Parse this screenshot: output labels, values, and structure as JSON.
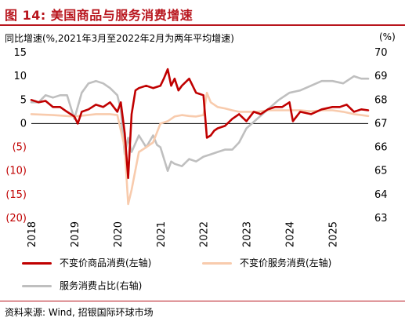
{
  "title": "图 14: 美国商品与服务消费增速",
  "subtitle": "同比增速(%,2021年3月至2022年2月为两年平均增速)",
  "right_unit": "(%)",
  "source": "资料来源: Wind, 招银国际环球市场",
  "colors": {
    "title": "#b8151d",
    "goods": "#c00000",
    "services": "#f8cbad",
    "share": "#bfbfbf",
    "negative_tick": "#c00000"
  },
  "chart_data": {
    "type": "line",
    "x_ticks": [
      "2018",
      "2019",
      "2020",
      "2021",
      "2022",
      "2023",
      "2024",
      "2025"
    ],
    "y_left": {
      "ticks": [
        "15",
        "10",
        "5",
        "0",
        "(5)",
        "(10)",
        "(15)",
        "(20)"
      ],
      "ylim": [
        -20,
        15
      ]
    },
    "y_right": {
      "ticks": [
        "70",
        "69",
        "68",
        "67",
        "66",
        "65",
        "64",
        "63"
      ],
      "ylim": [
        63,
        70
      ]
    },
    "xlim": [
      2018.0,
      2025.83
    ],
    "series": [
      {
        "name": "不变价商品消费(左轴)",
        "axis": "left",
        "x": [
          2018.0,
          2018.17,
          2018.33,
          2018.5,
          2018.67,
          2018.83,
          2019.0,
          2019.08,
          2019.17,
          2019.33,
          2019.5,
          2019.67,
          2019.83,
          2020.0,
          2020.08,
          2020.17,
          2020.25,
          2020.33,
          2020.42,
          2020.5,
          2020.67,
          2020.83,
          2021.0,
          2021.08,
          2021.17,
          2021.25,
          2021.33,
          2021.42,
          2021.5,
          2021.67,
          2021.83,
          2022.0,
          2022.08,
          2022.17,
          2022.25,
          2022.33,
          2022.5,
          2022.67,
          2022.83,
          2023.0,
          2023.17,
          2023.33,
          2023.5,
          2023.67,
          2023.83,
          2024.0,
          2024.08,
          2024.25,
          2024.5,
          2024.75,
          2025.0,
          2025.17,
          2025.33,
          2025.5,
          2025.67,
          2025.83
        ],
        "y": [
          5,
          4.5,
          4.8,
          3.5,
          3.5,
          2.5,
          1.5,
          0,
          2.5,
          3,
          4,
          3.5,
          4.5,
          2.5,
          4.5,
          -2,
          -11.5,
          2,
          7,
          7.5,
          8,
          7.5,
          8,
          9.5,
          11.5,
          8,
          9.5,
          7,
          8,
          9.5,
          6.5,
          6,
          -3,
          -2.5,
          -1.5,
          -1,
          -0.5,
          1,
          2,
          0.5,
          2.5,
          2,
          3,
          3.5,
          3.5,
          4.5,
          0.5,
          2.5,
          2,
          3,
          3.5,
          3.5,
          4,
          2.5,
          3,
          2.8
        ]
      },
      {
        "name": "不变价服务消费(左轴)",
        "axis": "left",
        "x": [
          2018.0,
          2018.5,
          2019.0,
          2019.5,
          2019.83,
          2020.0,
          2020.17,
          2020.25,
          2020.33,
          2020.5,
          2020.67,
          2020.83,
          2021.0,
          2021.17,
          2021.33,
          2021.5,
          2021.67,
          2021.83,
          2022.0,
          2022.08,
          2022.17,
          2022.33,
          2022.5,
          2022.67,
          2022.83,
          2023.0,
          2023.25,
          2023.5,
          2023.75,
          2024.0,
          2024.25,
          2024.5,
          2024.75,
          2025.0,
          2025.25,
          2025.5,
          2025.67,
          2025.83
        ],
        "y": [
          2,
          1.8,
          1.5,
          2,
          2,
          1.8,
          -5,
          -17,
          -14,
          -6,
          -5,
          -4,
          0,
          0.5,
          1.5,
          1.8,
          1.6,
          1.5,
          1.8,
          6.5,
          4.5,
          3.5,
          3.2,
          2.8,
          2.5,
          2.5,
          2.5,
          2.8,
          2.8,
          2.8,
          2.8,
          2.6,
          2.8,
          2.8,
          2.5,
          2.0,
          1.8,
          1.6
        ]
      },
      {
        "name": "服务消费占比(右轴)",
        "axis": "right",
        "x": [
          2018.0,
          2018.17,
          2018.33,
          2018.5,
          2018.67,
          2018.83,
          2019.0,
          2019.17,
          2019.33,
          2019.5,
          2019.67,
          2019.83,
          2020.0,
          2020.08,
          2020.17,
          2020.25,
          2020.33,
          2020.5,
          2020.67,
          2020.83,
          2020.92,
          2021.0,
          2021.17,
          2021.25,
          2021.33,
          2021.5,
          2021.67,
          2021.83,
          2022.0,
          2022.17,
          2022.33,
          2022.5,
          2022.67,
          2022.83,
          2023.0,
          2023.25,
          2023.5,
          2023.75,
          2024.0,
          2024.25,
          2024.5,
          2024.75,
          2025.0,
          2025.25,
          2025.5,
          2025.67,
          2025.83
        ],
        "y": [
          67.9,
          67.9,
          68.2,
          68.1,
          68.2,
          68.2,
          67.2,
          68.3,
          68.7,
          68.8,
          68.7,
          68.5,
          68.2,
          67.6,
          65.7,
          66.4,
          65.8,
          66.5,
          66.0,
          66.5,
          66.1,
          66.0,
          65.0,
          65.4,
          65.3,
          65.2,
          65.5,
          65.4,
          65.6,
          65.7,
          65.8,
          65.9,
          65.9,
          66.2,
          66.8,
          67.2,
          67.6,
          68.0,
          68.3,
          68.4,
          68.6,
          68.8,
          68.8,
          68.7,
          69.0,
          68.9,
          68.9
        ]
      }
    ]
  }
}
